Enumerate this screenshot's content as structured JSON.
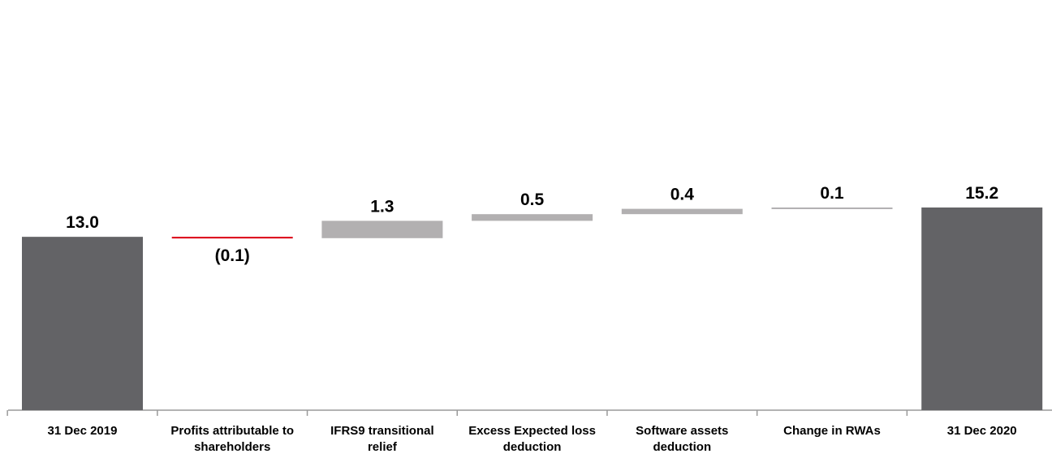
{
  "chart_data": {
    "type": "bar",
    "subtype": "waterfall",
    "title": "",
    "xlabel": "",
    "ylabel": "",
    "grid": false,
    "legend": "none",
    "categories": [
      [
        "31 Dec 2019"
      ],
      [
        "Profits attributable to",
        "shareholders"
      ],
      [
        "IFRS9 transitional",
        "relief"
      ],
      [
        "Excess Expected loss",
        "deduction"
      ],
      [
        "Software assets",
        "deduction"
      ],
      [
        "Change in RWAs"
      ],
      [
        "31 Dec 2020"
      ]
    ],
    "bars": [
      {
        "kind": "total",
        "value": 13.0,
        "label": "13.0",
        "base": 0.0
      },
      {
        "kind": "decrease",
        "value": -0.1,
        "label": "(0.1)",
        "base": 13.0
      },
      {
        "kind": "increase",
        "value": 1.3,
        "label": "1.3",
        "base": 12.9
      },
      {
        "kind": "increase",
        "value": 0.5,
        "label": "0.5",
        "base": 14.2
      },
      {
        "kind": "increase",
        "value": 0.4,
        "label": "0.4",
        "base": 14.7
      },
      {
        "kind": "increase",
        "value": 0.1,
        "label": "0.1",
        "base": 15.1
      },
      {
        "kind": "total",
        "value": 15.2,
        "label": "15.2",
        "base": 0.0
      }
    ],
    "colors": {
      "total": "#636366",
      "increase": "#b2b0b1",
      "decrease": "#db0011",
      "axis": "#9a9a9a"
    }
  }
}
